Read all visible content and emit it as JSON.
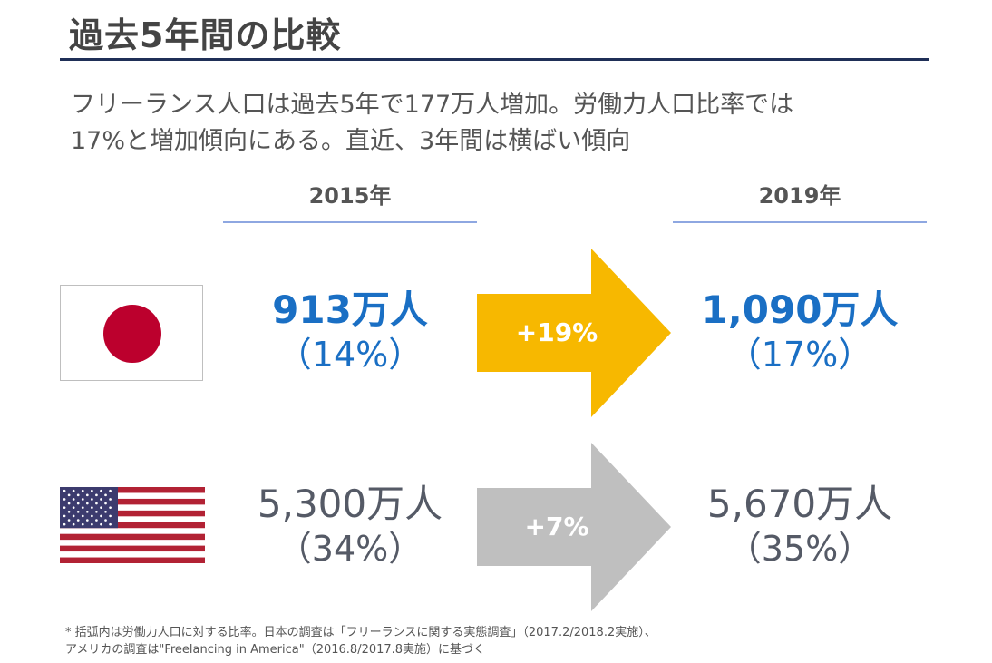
{
  "title": "過去5年間の比較",
  "subtitle": {
    "line1": "フリーランス人口は過去5年で177万人増加。労働力人口比率では",
    "line2": "17%と増加傾向にある。直近、3年間は横ばい傾向"
  },
  "years": {
    "from": "2015年",
    "to": "2019年"
  },
  "japan": {
    "flag_icon": "japan-flag-icon",
    "from_value": "913万人",
    "from_pct": "（14%）",
    "change": "+19%",
    "to_value": "1,090万人",
    "to_pct": "（17%）"
  },
  "usa": {
    "flag_icon": "usa-flag-icon",
    "from_value": "5,300万人",
    "from_pct": "（34%）",
    "change": "+7%",
    "to_value": "5,670万人",
    "to_pct": "（35%）"
  },
  "colors": {
    "title_rule": "#1f2f57",
    "year_rule": "#8ea7e1",
    "japan_text": "#1a6fc4",
    "japan_arrow": "#f7b800",
    "usa_arrow": "#bfbfbf",
    "japan_red": "#bc002d"
  },
  "note": {
    "line1": "* 括弧内は労働力人口に対する比率。日本の調査は「フリーランスに関する実態調査」（2017.2/2018.2実施）、",
    "line2": "アメリカの調査は\"Freelancing in America\"（2016.8/2017.8実施）に基づく"
  }
}
